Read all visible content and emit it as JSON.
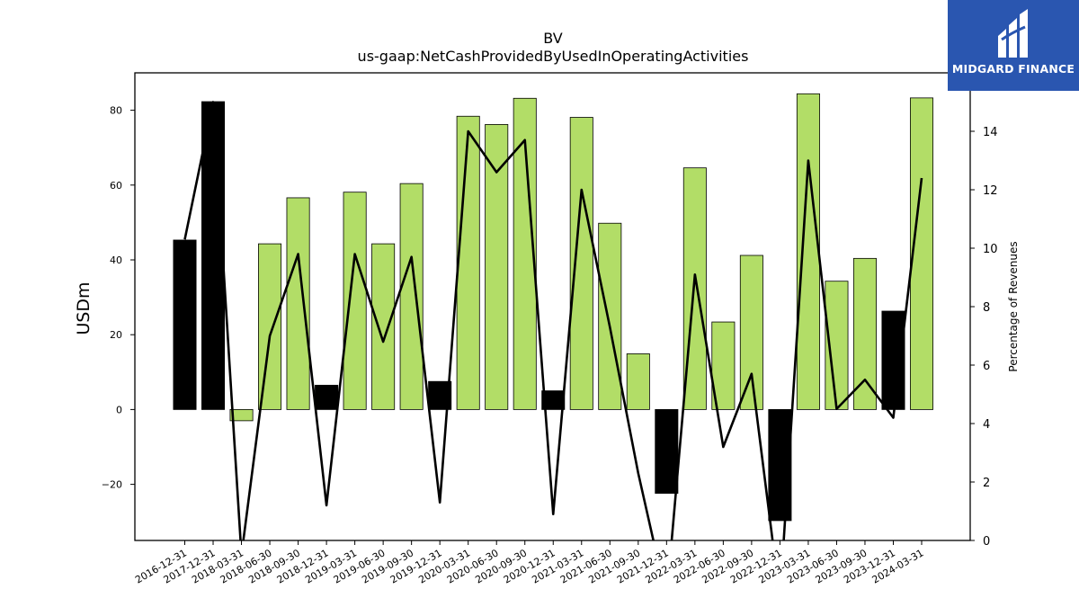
{
  "chart_data": {
    "type": "bar",
    "title": "BV",
    "subtitle": "us-gaap:NetCashProvidedByUsedInOperatingActivities",
    "ylabel": "USDm",
    "y2label": "Percentage of Revenues",
    "ylim": [
      -35,
      90
    ],
    "y2lim": [
      0,
      16
    ],
    "yticks": [
      -20,
      0,
      20,
      40,
      60,
      80
    ],
    "y2ticks": [
      0,
      2,
      4,
      6,
      8,
      10,
      12,
      14
    ],
    "grid": false,
    "legend": "none",
    "categories": [
      "2016-12-31",
      "2017-12-31",
      "2018-03-31",
      "2018-06-30",
      "2018-09-30",
      "2018-12-31",
      "2019-03-31",
      "2019-06-30",
      "2019-09-30",
      "2019-12-31",
      "2020-03-31",
      "2020-06-30",
      "2020-09-30",
      "2020-12-31",
      "2021-03-31",
      "2021-06-30",
      "2021-09-30",
      "2021-12-31",
      "2022-03-31",
      "2022-06-30",
      "2022-09-30",
      "2022-12-31",
      "2023-03-31",
      "2023-06-30",
      "2023-09-30",
      "2023-12-31",
      "2024-03-31"
    ],
    "series": [
      {
        "type": "bar",
        "axis": "left",
        "values": [
          45.3,
          82.3,
          -3.0,
          44.3,
          56.6,
          6.5,
          58.1,
          44.3,
          60.4,
          7.5,
          78.4,
          76.2,
          83.2,
          5.0,
          78.1,
          49.8,
          14.9,
          -22.4,
          64.6,
          23.4,
          41.2,
          -29.7,
          84.4,
          34.3,
          40.4,
          26.3,
          83.3
        ],
        "colors": [
          "#000000",
          "#000000",
          "#b2dd67",
          "#b2dd67",
          "#b2dd67",
          "#000000",
          "#b2dd67",
          "#b2dd67",
          "#b2dd67",
          "#000000",
          "#b2dd67",
          "#b2dd67",
          "#b2dd67",
          "#000000",
          "#b2dd67",
          "#b2dd67",
          "#b2dd67",
          "#000000",
          "#b2dd67",
          "#b2dd67",
          "#b2dd67",
          "#000000",
          "#b2dd67",
          "#b2dd67",
          "#b2dd67",
          "#000000",
          "#b2dd67"
        ]
      },
      {
        "type": "line",
        "axis": "right",
        "color": "#000000",
        "values": [
          10.3,
          15.0,
          -0.5,
          7.0,
          9.8,
          1.2,
          9.8,
          6.8,
          9.7,
          1.3,
          14.0,
          12.6,
          13.7,
          0.9,
          12.0,
          7.3,
          2.3,
          -2.0,
          9.1,
          3.2,
          5.7,
          -2.0,
          13.0,
          4.5,
          5.5,
          4.2,
          12.4
        ]
      }
    ]
  },
  "logo": {
    "text": "MIDGARD FINANCE",
    "background": "#2a56b0"
  }
}
